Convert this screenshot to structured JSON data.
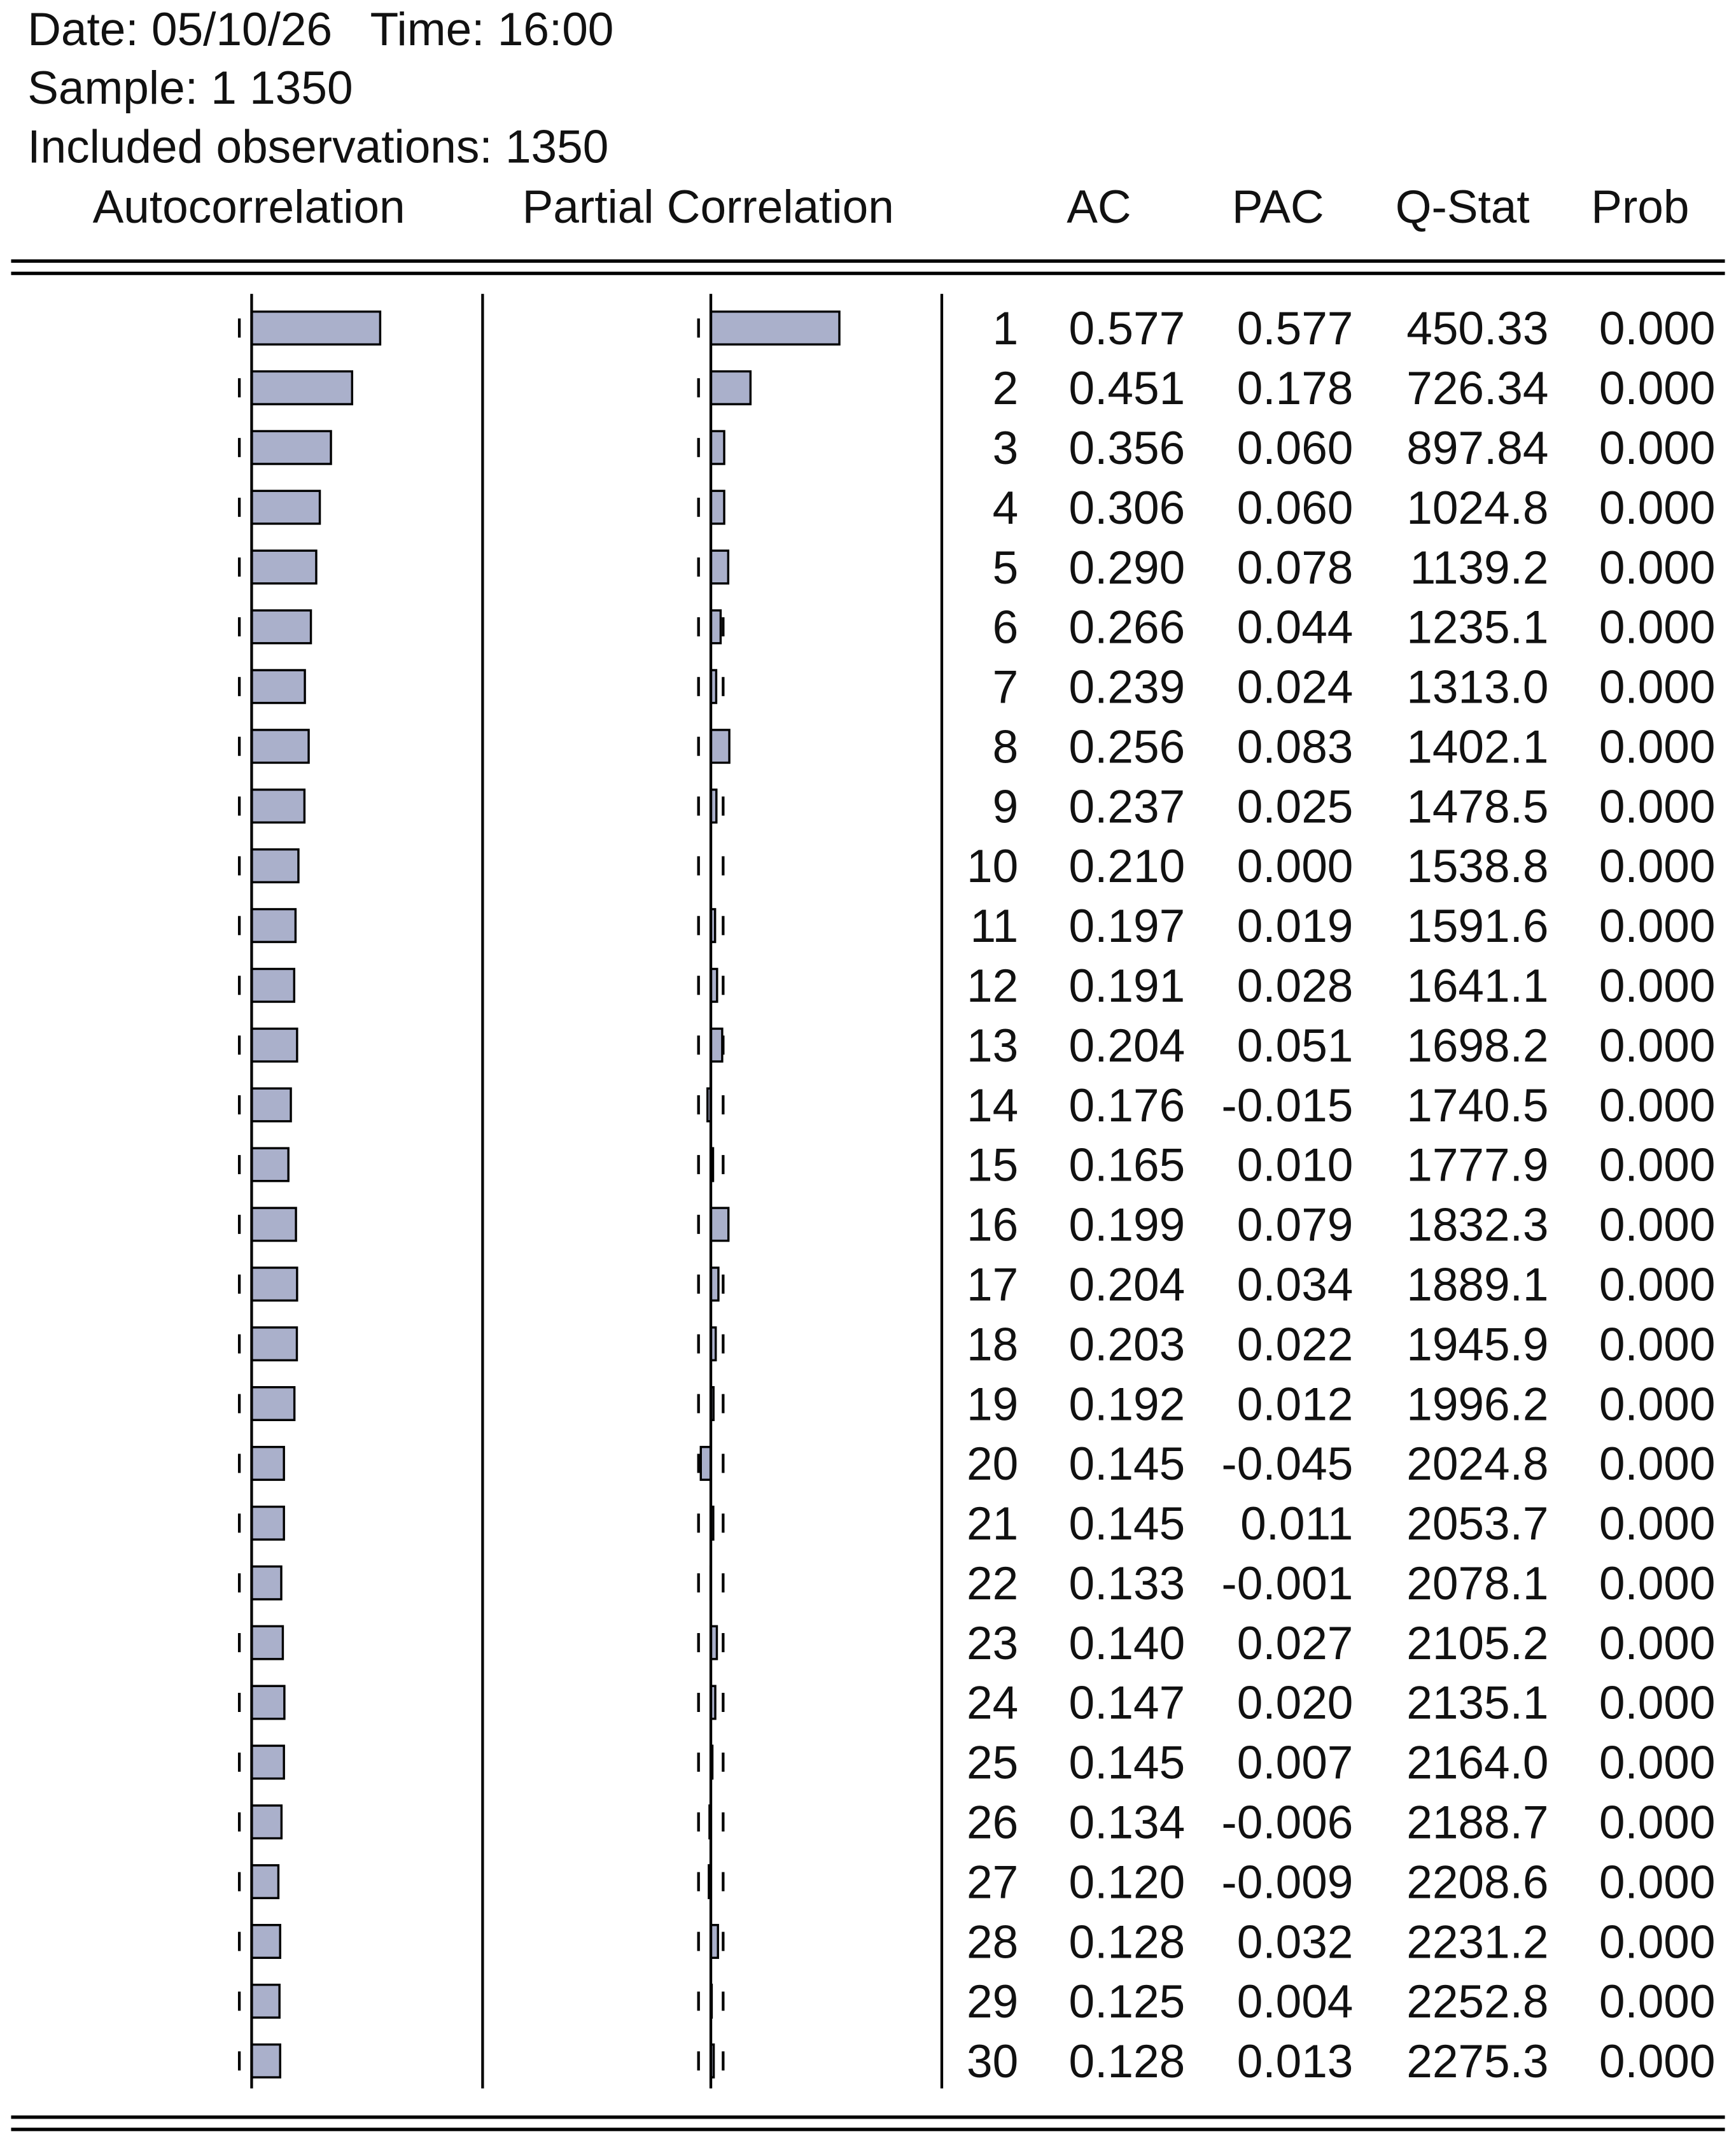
{
  "header": {
    "date_line": "Date: 05/10/26   Time: 16:00",
    "sample": "Sample: 1 1350",
    "observations": "Included observations: 1350"
  },
  "columns": {
    "autocorrelation": "Autocorrelation",
    "partial_correlation": "Partial Correlation",
    "ac": "AC",
    "pac": "PAC",
    "q_stat": "Q-Stat",
    "prob": "Prob"
  },
  "rows": [
    [
      "1",
      "0.577",
      "0.577",
      "450.33",
      "0.000"
    ],
    [
      "2",
      "0.451",
      "0.178",
      "726.34",
      "0.000"
    ],
    [
      "3",
      "0.356",
      "0.060",
      "897.84",
      "0.000"
    ],
    [
      "4",
      "0.306",
      "0.060",
      "1024.8",
      "0.000"
    ],
    [
      "5",
      "0.290",
      "0.078",
      "1139.2",
      "0.000"
    ],
    [
      "6",
      "0.266",
      "0.044",
      "1235.1",
      "0.000"
    ],
    [
      "7",
      "0.239",
      "0.024",
      "1313.0",
      "0.000"
    ],
    [
      "8",
      "0.256",
      "0.083",
      "1402.1",
      "0.000"
    ],
    [
      "9",
      "0.237",
      "0.025",
      "1478.5",
      "0.000"
    ],
    [
      "10",
      "0.210",
      "0.000",
      "1538.8",
      "0.000"
    ],
    [
      "11",
      "0.197",
      "0.019",
      "1591.6",
      "0.000"
    ],
    [
      "12",
      "0.191",
      "0.028",
      "1641.1",
      "0.000"
    ],
    [
      "13",
      "0.204",
      "0.051",
      "1698.2",
      "0.000"
    ],
    [
      "14",
      "0.176",
      "-0.015",
      "1740.5",
      "0.000"
    ],
    [
      "15",
      "0.165",
      "0.010",
      "1777.9",
      "0.000"
    ],
    [
      "16",
      "0.199",
      "0.079",
      "1832.3",
      "0.000"
    ],
    [
      "17",
      "0.204",
      "0.034",
      "1889.1",
      "0.000"
    ],
    [
      "18",
      "0.203",
      "0.022",
      "1945.9",
      "0.000"
    ],
    [
      "19",
      "0.192",
      "0.012",
      "1996.2",
      "0.000"
    ],
    [
      "20",
      "0.145",
      "-0.045",
      "2024.8",
      "0.000"
    ],
    [
      "21",
      "0.145",
      "0.011",
      "2053.7",
      "0.000"
    ],
    [
      "22",
      "0.133",
      "-0.001",
      "2078.1",
      "0.000"
    ],
    [
      "23",
      "0.140",
      "0.027",
      "2105.2",
      "0.000"
    ],
    [
      "24",
      "0.147",
      "0.020",
      "2135.1",
      "0.000"
    ],
    [
      "25",
      "0.145",
      "0.007",
      "2164.0",
      "0.000"
    ],
    [
      "26",
      "0.134",
      "-0.006",
      "2188.7",
      "0.000"
    ],
    [
      "27",
      "0.120",
      "-0.009",
      "2208.6",
      "0.000"
    ],
    [
      "28",
      "0.128",
      "0.032",
      "2231.2",
      "0.000"
    ],
    [
      "29",
      "0.125",
      "0.004",
      "2252.8",
      "0.000"
    ],
    [
      "30",
      "0.128",
      "0.013",
      "2275.3",
      "0.000"
    ]
  ]
}
